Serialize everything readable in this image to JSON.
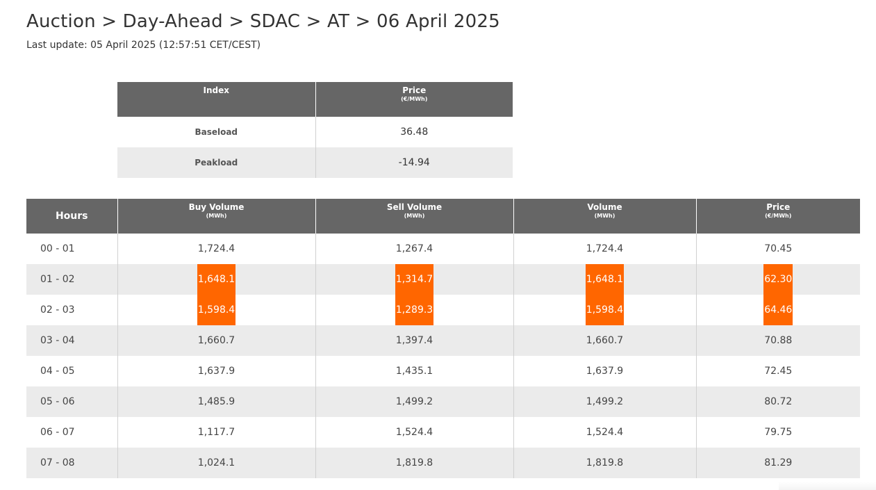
{
  "header": {
    "breadcrumb": "Auction > Day-Ahead > SDAC > AT > 06 April 2025",
    "last_update": "Last update: 05 April 2025 (12:57:51 CET/CEST)"
  },
  "index_table": {
    "columns": [
      {
        "label": "Index",
        "unit": ""
      },
      {
        "label": "Price",
        "unit": "(€/MWh)"
      }
    ],
    "rows": [
      {
        "index": "Baseload",
        "price": "36.48"
      },
      {
        "index": "Peakload",
        "price": "-14.94"
      }
    ]
  },
  "hours_table": {
    "columns": [
      {
        "label": "Hours",
        "unit": ""
      },
      {
        "label": "Buy Volume",
        "unit": "(MWh)"
      },
      {
        "label": "Sell Volume",
        "unit": "(MWh)"
      },
      {
        "label": "Volume",
        "unit": "(MWh)"
      },
      {
        "label": "Price",
        "unit": "(€/MWh)"
      }
    ],
    "rows": [
      {
        "hours": "00 - 01",
        "buy": "1,724.4",
        "sell": "1,267.4",
        "volume": "1,724.4",
        "price": "70.45",
        "highlight": false
      },
      {
        "hours": "01 - 02",
        "buy": "1,648.1",
        "sell": "1,314.7",
        "volume": "1,648.1",
        "price": "62.30",
        "highlight": true
      },
      {
        "hours": "02 - 03",
        "buy": "1,598.4",
        "sell": "1,289.3",
        "volume": "1,598.4",
        "price": "64.46",
        "highlight": true
      },
      {
        "hours": "03 - 04",
        "buy": "1,660.7",
        "sell": "1,397.4",
        "volume": "1,660.7",
        "price": "70.88",
        "highlight": false
      },
      {
        "hours": "04 - 05",
        "buy": "1,637.9",
        "sell": "1,435.1",
        "volume": "1,637.9",
        "price": "72.45",
        "highlight": false
      },
      {
        "hours": "05 - 06",
        "buy": "1,485.9",
        "sell": "1,499.2",
        "volume": "1,499.2",
        "price": "80.72",
        "highlight": false
      },
      {
        "hours": "06 - 07",
        "buy": "1,117.7",
        "sell": "1,524.4",
        "volume": "1,524.4",
        "price": "79.75",
        "highlight": false
      },
      {
        "hours": "07 - 08",
        "buy": "1,024.1",
        "sell": "1,819.8",
        "volume": "1,819.8",
        "price": "81.29",
        "highlight": false
      }
    ]
  },
  "colors": {
    "header_bg": "#666666",
    "alt_row_bg": "#ebebeb",
    "highlight": "#ff6600"
  }
}
